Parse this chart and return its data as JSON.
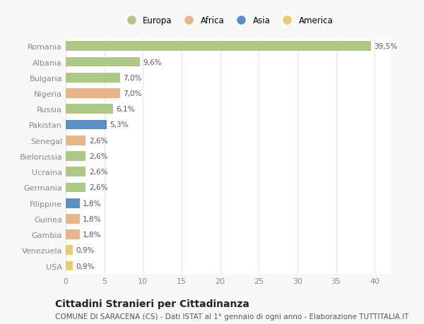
{
  "countries": [
    "Romania",
    "Albania",
    "Bulgaria",
    "Nigeria",
    "Russia",
    "Pakistan",
    "Senegal",
    "Bielorussia",
    "Ucraina",
    "Germania",
    "Filippine",
    "Guinea",
    "Gambia",
    "Venezuela",
    "USA"
  ],
  "values": [
    39.5,
    9.6,
    7.0,
    7.0,
    6.1,
    5.3,
    2.6,
    2.6,
    2.6,
    2.6,
    1.8,
    1.8,
    1.8,
    0.9,
    0.9
  ],
  "labels": [
    "39,5%",
    "9,6%",
    "7,0%",
    "7,0%",
    "6,1%",
    "5,3%",
    "2,6%",
    "2,6%",
    "2,6%",
    "2,6%",
    "1,8%",
    "1,8%",
    "1,8%",
    "0,9%",
    "0,9%"
  ],
  "continents": [
    "Europa",
    "Europa",
    "Europa",
    "Africa",
    "Europa",
    "Asia",
    "Africa",
    "Europa",
    "Europa",
    "Europa",
    "Asia",
    "Africa",
    "Africa",
    "America",
    "America"
  ],
  "continent_colors": {
    "Europa": "#adc985",
    "Africa": "#e8b48a",
    "Asia": "#5b8ec4",
    "America": "#e8cc6e"
  },
  "legend_order": [
    "Europa",
    "Africa",
    "Asia",
    "America"
  ],
  "title": "Cittadini Stranieri per Cittadinanza",
  "subtitle": "COMUNE DI SARACENA (CS) - Dati ISTAT al 1° gennaio di ogni anno - Elaborazione TUTTITALIA.IT",
  "xlim": [
    0,
    42
  ],
  "xticks": [
    0,
    5,
    10,
    15,
    20,
    25,
    30,
    35,
    40
  ],
  "plot_bg_color": "#ffffff",
  "fig_bg_color": "#f8f8f8",
  "grid_color": "#e8e8e8",
  "title_fontsize": 10,
  "subtitle_fontsize": 7.5,
  "label_fontsize": 7.5,
  "tick_fontsize": 8,
  "legend_fontsize": 8.5
}
